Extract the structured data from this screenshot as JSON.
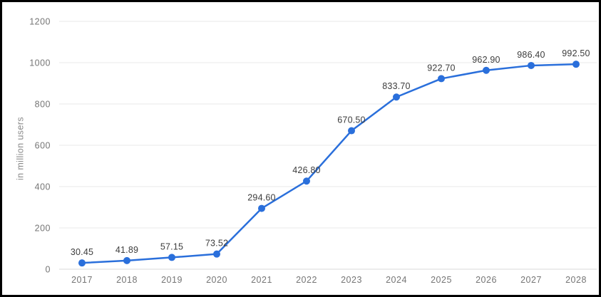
{
  "chart_data": {
    "type": "line",
    "title": "",
    "categories": [
      "2017",
      "2018",
      "2019",
      "2020",
      "2021",
      "2022",
      "2023",
      "2024",
      "2025",
      "2026",
      "2027",
      "2028"
    ],
    "values": [
      30.45,
      41.89,
      57.15,
      73.52,
      294.6,
      426.8,
      670.5,
      833.7,
      922.7,
      962.9,
      986.4,
      992.5
    ],
    "data_labels": [
      "30.45",
      "41.89",
      "57.15",
      "73.52",
      "294.60",
      "426.80",
      "670.50",
      "833.70",
      "922.70",
      "962.90",
      "986.40",
      "992.50"
    ],
    "xlabel": "",
    "ylabel": "in million users",
    "ylim": [
      0,
      1200
    ],
    "ytick_interval": 200,
    "ytick_labels": [
      "0",
      "200",
      "400",
      "600",
      "800",
      "1000",
      "1200"
    ],
    "grid": "horizontal-only",
    "legend": "none",
    "colors": {
      "line": "#2a6fdb",
      "point": "#2a6fdb",
      "gridline": "#e8e8e8",
      "axis_line": "#d9d9d9",
      "tick_label": "#757575",
      "data_label": "#3c3c3c",
      "axis_title": "#8a8a8a",
      "frame_border": "#000000",
      "background": "#ffffff"
    }
  }
}
